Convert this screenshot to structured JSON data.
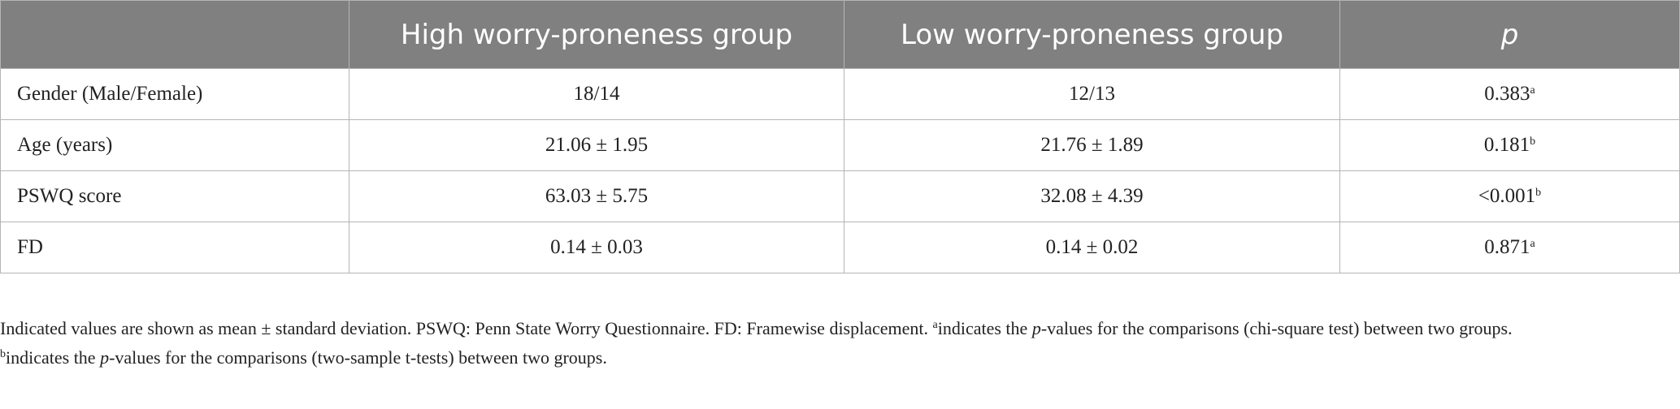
{
  "table": {
    "header": [
      "",
      "High worry-proneness group",
      "Low worry-proneness group",
      "p"
    ],
    "rows": [
      {
        "label": "Gender (Male/Female)",
        "high": "18/14",
        "low": "12/13",
        "p": "0.383",
        "sup": "a"
      },
      {
        "label": "Age (years)",
        "high": "21.06 ± 1.95",
        "low": "21.76 ± 1.89",
        "p": "0.181",
        "sup": "b"
      },
      {
        "label": "PSWQ score",
        "high": "63.03 ± 5.75",
        "low": "32.08 ± 4.39",
        "p": "<0.001",
        "sup": "b"
      },
      {
        "label": "FD",
        "high": "0.14 ± 0.03",
        "low": "0.14 ± 0.02",
        "p": "0.871",
        "sup": "a"
      }
    ]
  },
  "footnotes": [
    {
      "text": "Indicated values are shown as mean ± standard deviation. PSWQ: Penn State Worry Questionnaire. FD: Framewise displacement. ",
      "sup": "a",
      "pre": "indicates the ",
      "italic": "p",
      "post": "-values for the comparisons (chi-square test) between two groups."
    },
    {
      "sup": "b",
      "pre": "indicates the ",
      "italic": "p",
      "post": "-values for the comparisons (two-sample t-tests) between two groups."
    }
  ]
}
